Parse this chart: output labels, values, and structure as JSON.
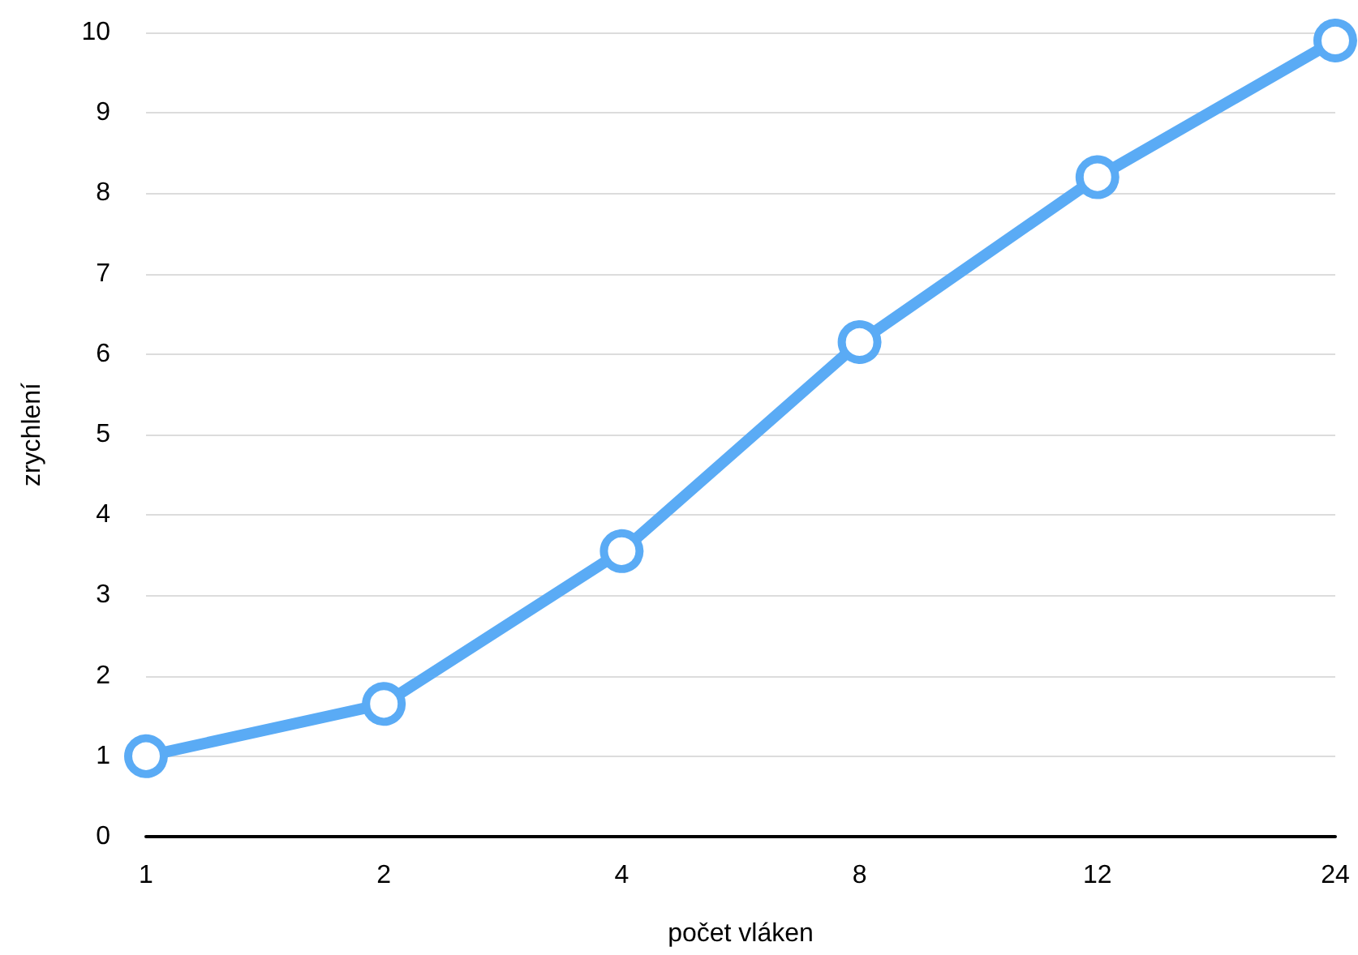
{
  "chart_data": {
    "type": "line",
    "xlabel": "počet vláken",
    "ylabel": "zrychlení",
    "categories": [
      "1",
      "2",
      "4",
      "8",
      "12",
      "24"
    ],
    "values": [
      1,
      1.65,
      3.55,
      6.15,
      8.2,
      9.9
    ],
    "color": "#5aabf5",
    "ylim": [
      0,
      10
    ],
    "yticks": [
      0,
      1,
      2,
      3,
      4,
      5,
      6,
      7,
      8,
      9,
      10
    ],
    "grid": "y",
    "marker": "circle",
    "line_style": "solid"
  }
}
